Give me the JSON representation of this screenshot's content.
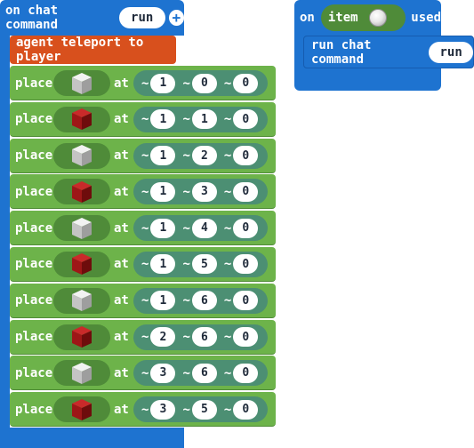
{
  "colors": {
    "event_blue": "#1e73d0",
    "agent_orange": "#d8501d",
    "block_green": "#6db34a",
    "position_teal": "#4c8f73",
    "iron_block": "#c8c8c8",
    "redstone_block": "#a01818"
  },
  "chat_event": {
    "prefix": "on chat command",
    "command": "run",
    "add_icon": "plus-icon"
  },
  "teleport": {
    "label": "agent teleport to player"
  },
  "place_blocks": [
    {
      "label": "place",
      "at": "at",
      "block": "iron",
      "tilde": "~",
      "x": "1",
      "y": "0",
      "z": "0"
    },
    {
      "label": "place",
      "at": "at",
      "block": "redstone",
      "tilde": "~",
      "x": "1",
      "y": "1",
      "z": "0"
    },
    {
      "label": "place",
      "at": "at",
      "block": "iron",
      "tilde": "~",
      "x": "1",
      "y": "2",
      "z": "0"
    },
    {
      "label": "place",
      "at": "at",
      "block": "redstone",
      "tilde": "~",
      "x": "1",
      "y": "3",
      "z": "0"
    },
    {
      "label": "place",
      "at": "at",
      "block": "iron",
      "tilde": "~",
      "x": "1",
      "y": "4",
      "z": "0"
    },
    {
      "label": "place",
      "at": "at",
      "block": "redstone",
      "tilde": "~",
      "x": "1",
      "y": "5",
      "z": "0"
    },
    {
      "label": "place",
      "at": "at",
      "block": "iron",
      "tilde": "~",
      "x": "1",
      "y": "6",
      "z": "0"
    },
    {
      "label": "place",
      "at": "at",
      "block": "redstone",
      "tilde": "~",
      "x": "2",
      "y": "6",
      "z": "0"
    },
    {
      "label": "place",
      "at": "at",
      "block": "iron",
      "tilde": "~",
      "x": "3",
      "y": "6",
      "z": "0"
    },
    {
      "label": "place",
      "at": "at",
      "block": "redstone",
      "tilde": "~",
      "x": "3",
      "y": "5",
      "z": "0"
    }
  ],
  "item_event": {
    "prefix": "on",
    "item_label": "item",
    "item_icon": "snowball-icon",
    "suffix": "used"
  },
  "run_chat": {
    "label": "run chat command",
    "command": "run"
  }
}
